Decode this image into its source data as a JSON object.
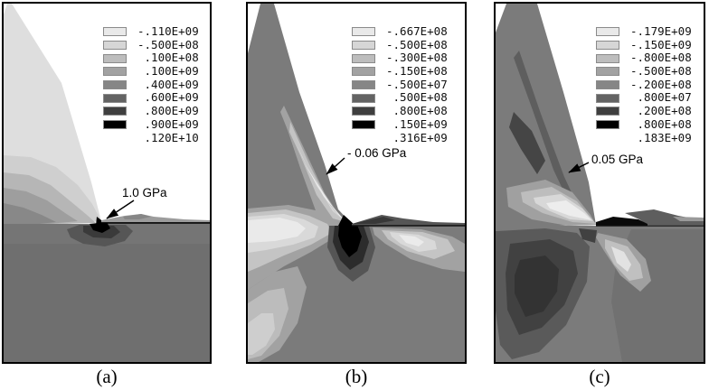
{
  "figure": {
    "palette": [
      "#e9e9e9",
      "#d6d6d6",
      "#bdbdbd",
      "#a2a2a2",
      "#868686",
      "#636363",
      "#3f3f3f",
      "#000000"
    ],
    "panels": [
      {
        "id": "a",
        "caption": "(a)",
        "annotation": "1.0 GPa",
        "legend": [
          "-.110E+09",
          "-.500E+08",
          " .100E+08",
          " .100E+09",
          " .400E+09",
          " .600E+09",
          " .800E+09",
          " .900E+09",
          " .120E+10"
        ]
      },
      {
        "id": "b",
        "caption": "(b)",
        "annotation": "- 0.06 GPa",
        "legend": [
          "-.667E+08",
          "-.500E+08",
          "-.300E+08",
          "-.150E+08",
          "-.500E+07",
          " .500E+08",
          " .800E+08",
          " .150E+09",
          " .316E+09"
        ]
      },
      {
        "id": "c",
        "caption": "(c)",
        "annotation": "0.05 GPa",
        "legend": [
          "-.179E+09",
          "-.150E+09",
          "-.800E+08",
          "-.500E+08",
          "-.200E+08",
          " .800E+07",
          " .200E+08",
          " .800E+08",
          " .183E+09"
        ]
      }
    ]
  },
  "chart_data": [
    {
      "type": "heatmap",
      "subtype": "fem-contour-plot",
      "title": "(a)",
      "annotation": "1.0 GPa",
      "legend_position": "top-right",
      "contour_levels_Pa": [
        -110000000.0,
        -50000000.0,
        10000000.0,
        100000000.0,
        400000000.0,
        600000000.0,
        800000000.0,
        900000000.0,
        1200000000.0
      ],
      "contour_level_labels": [
        "-.110E+09",
        "-.500E+08",
        ".100E+08",
        ".100E+09",
        ".400E+09",
        ".600E+09",
        ".800E+09",
        ".900E+09",
        ".120E+10"
      ],
      "colormap": "grayscale-light-to-black",
      "scene": "wedge indenter on coated substrate, peak stress 1.0 GPa at contact tip"
    },
    {
      "type": "heatmap",
      "subtype": "fem-contour-plot",
      "title": "(b)",
      "annotation": "- 0.06 GPa",
      "legend_position": "top-right",
      "contour_levels_Pa": [
        -66700000.0,
        -50000000.0,
        -30000000.0,
        -15000000.0,
        -5000000.0,
        50000000.0,
        80000000.0,
        150000000.0,
        316000000.0
      ],
      "contour_level_labels": [
        "-.667E+08",
        "-.500E+08",
        "-.300E+08",
        "-.150E+08",
        "-.500E+07",
        ".500E+08",
        ".800E+08",
        ".150E+09",
        ".316E+09"
      ],
      "colormap": "grayscale-light-to-black",
      "scene": "wedge indenter on coated substrate, -0.06 GPa region along indenter flank, tensile plume below tip"
    },
    {
      "type": "heatmap",
      "subtype": "fem-contour-plot",
      "title": "(c)",
      "annotation": "0.05 GPa",
      "legend_position": "top-right",
      "contour_levels_Pa": [
        -179000000.0,
        -150000000.0,
        -80000000.0,
        -50000000.0,
        -20000000.0,
        8000000.0,
        20000000.0,
        80000000.0,
        183000000.0
      ],
      "contour_level_labels": [
        "-.179E+09",
        "-.150E+09",
        "-.800E+08",
        "-.500E+08",
        "-.200E+08",
        ".800E+07",
        ".200E+08",
        ".800E+08",
        ".183E+09"
      ],
      "colormap": "grayscale-light-to-black",
      "scene": "wedge indenter on coated substrate, 0.05 GPa at indenter flank, butterfly lobes around tip"
    }
  ]
}
